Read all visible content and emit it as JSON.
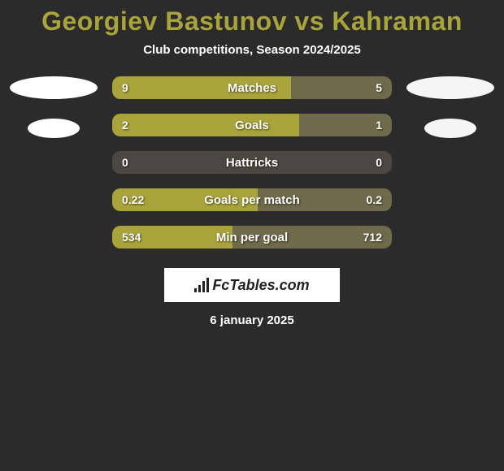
{
  "header": {
    "title": "Georgiev Bastunov vs Kahraman",
    "title_color": "#a8a33a",
    "subtitle": "Club competitions, Season 2024/2025"
  },
  "colors": {
    "left_bar": "#a8a33a",
    "right_bar": "#6e6a4a",
    "empty_bar": "#4a4840",
    "background": "#2b2b2b",
    "flag_left": "#ffffff",
    "flag_right": "#f5f5f5"
  },
  "stats": [
    {
      "label": "Matches",
      "left_val": "9",
      "right_val": "5",
      "left_pct": 64,
      "right_pct": 36,
      "empty_pct": 0
    },
    {
      "label": "Goals",
      "left_val": "2",
      "right_val": "1",
      "left_pct": 67,
      "right_pct": 33,
      "empty_pct": 0
    },
    {
      "label": "Hattricks",
      "left_val": "0",
      "right_val": "0",
      "left_pct": 0,
      "right_pct": 0,
      "empty_pct": 100
    },
    {
      "label": "Goals per match",
      "left_val": "0.22",
      "right_val": "0.2",
      "left_pct": 52,
      "right_pct": 48,
      "empty_pct": 0
    },
    {
      "label": "Min per goal",
      "left_val": "534",
      "right_val": "712",
      "left_pct": 43,
      "right_pct": 57,
      "empty_pct": 0
    }
  ],
  "footer": {
    "brand": "FcTables.com",
    "date": "6 january 2025"
  }
}
